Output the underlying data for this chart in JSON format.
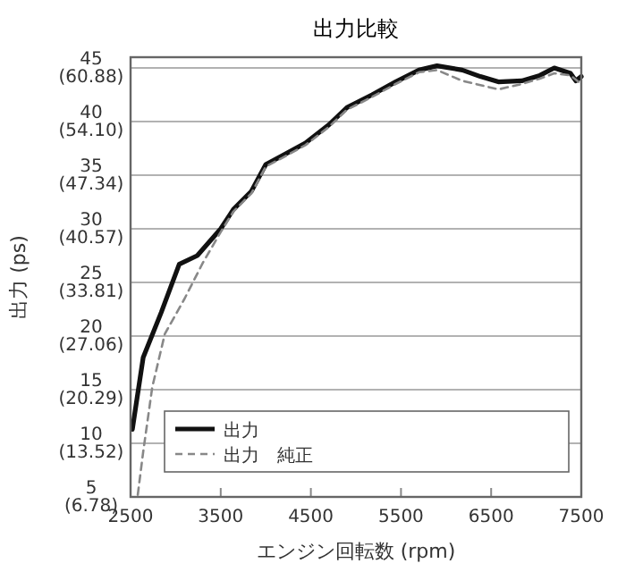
{
  "chart_data": {
    "type": "line",
    "title": "出力比較",
    "xlabel": "エンジン回転数 (rpm)",
    "y2label": "出力 (ps)",
    "xlim": [
      2500,
      7500
    ],
    "xticks": [
      2500,
      3500,
      4500,
      5500,
      6500,
      7500
    ],
    "ylim": [
      5,
      46
    ],
    "yticks": [
      5,
      10,
      15,
      20,
      25,
      30,
      35,
      40,
      45
    ],
    "y2lim": [
      6.78,
      62.23
    ],
    "y2ticks": [
      {
        "value": 6.78,
        "label": "(6.78)"
      },
      {
        "value": 13.52,
        "label": "(13.52)"
      },
      {
        "value": 20.29,
        "label": "(20.29)"
      },
      {
        "value": 27.06,
        "label": "(27.06)"
      },
      {
        "value": 33.81,
        "label": "(33.81)"
      },
      {
        "value": 40.57,
        "label": "(40.57)"
      },
      {
        "value": 47.34,
        "label": "(47.34)"
      },
      {
        "value": 54.1,
        "label": "(54.10)"
      },
      {
        "value": 60.88,
        "label": "(60.88)"
      }
    ],
    "grid": "y",
    "legend": "bottom",
    "series": [
      {
        "name": "出力",
        "color": "#111111",
        "line_style": "solid",
        "x": [
          2520,
          2640,
          2840,
          3040,
          3240,
          3500,
          3640,
          3840,
          4000,
          4180,
          4440,
          4700,
          4900,
          5180,
          5440,
          5700,
          5900,
          6180,
          6380,
          6580,
          6840,
          7040,
          7200,
          7380,
          7440,
          7500
        ],
        "values": [
          11.3,
          18,
          22.2,
          26.7,
          27.5,
          30,
          31.8,
          33.5,
          36,
          36.8,
          38,
          39.7,
          41.3,
          42.5,
          43.7,
          44.8,
          45.2,
          44.8,
          44.2,
          43.7,
          43.8,
          44.3,
          45,
          44.5,
          43.8,
          44.2
        ]
      },
      {
        "name": "出力　純正",
        "color": "#888888",
        "line_style": "dashed",
        "x": [
          2580,
          2640,
          2740,
          2880,
          3100,
          3300,
          3500,
          3640,
          3840,
          4000,
          4180,
          4440,
          4700,
          4900,
          5180,
          5440,
          5700,
          5900,
          6180,
          6580,
          6840,
          7040,
          7200,
          7380,
          7500
        ],
        "values": [
          5.2,
          9.2,
          15.2,
          20.2,
          23.5,
          26.8,
          29.7,
          31.6,
          33.3,
          35.8,
          36.6,
          37.8,
          39.5,
          41.1,
          42.3,
          43.5,
          44.6,
          44.8,
          43.8,
          43,
          43.5,
          44,
          44.5,
          44.3,
          43.5
        ]
      }
    ]
  }
}
